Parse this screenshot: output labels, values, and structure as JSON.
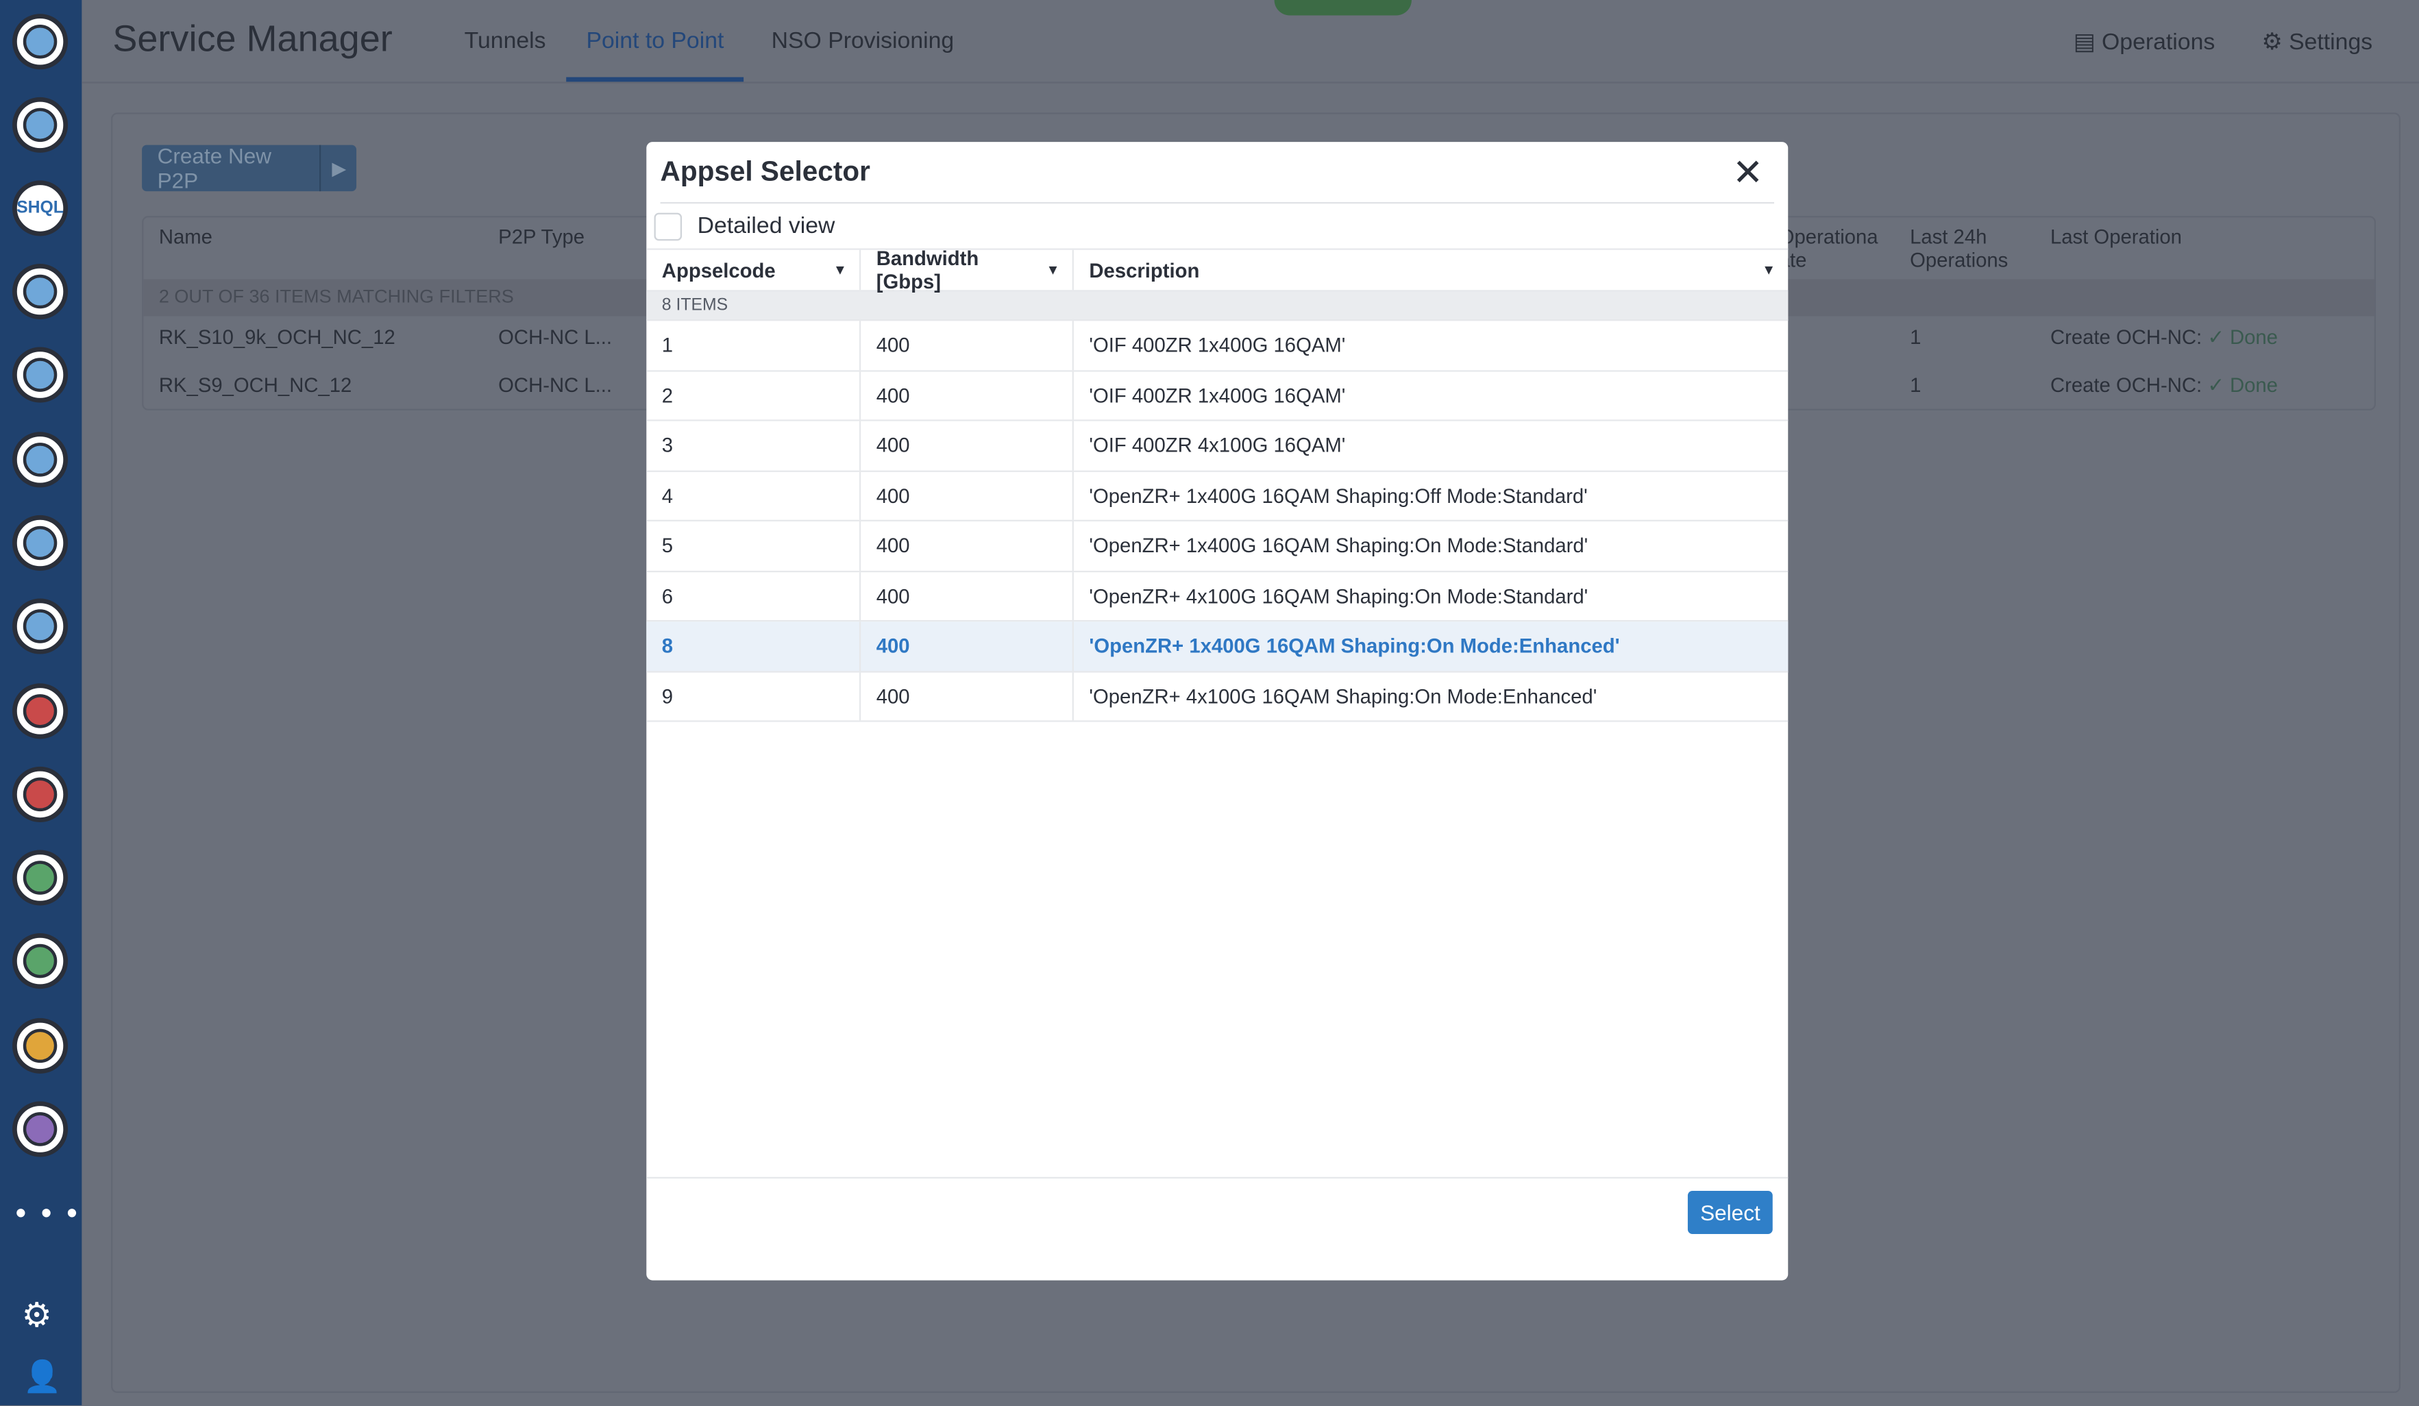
{
  "app": {
    "title": "Service Manager"
  },
  "nav": {
    "tabs": [
      {
        "label": "Tunnels"
      },
      {
        "label": "Point to Point",
        "active": true
      },
      {
        "label": "NSO Provisioning"
      }
    ],
    "operations": "Operations",
    "settings": "Settings"
  },
  "sidebar": {
    "icons": [
      "network-globe-icon",
      "dashboard-icon",
      "shql-icon",
      "scheduler-icon",
      "topology-icon",
      "map-icon",
      "layers-icon",
      "analytics-icon",
      "library-icon",
      "monitor-icon",
      "documents-icon",
      "triangle-icon",
      "integration-icon",
      "zoom-network-icon"
    ],
    "shql_text": "SHQL",
    "more": "• • •"
  },
  "page": {
    "create_button": "Create New P2P",
    "table": {
      "headers": [
        "Name",
        "P2P Type",
        "Operationa ate",
        "Last 24h Operations",
        "Last Operation"
      ],
      "filter_text": "2 OUT OF 36 ITEMS MATCHING FILTERS",
      "rows": [
        {
          "name": "RK_S10_9k_OCH_NC_12",
          "type": "OCH-NC L...",
          "ops": "1",
          "last_op": "Create OCH-NC:",
          "status": "✓ Done"
        },
        {
          "name": "RK_S9_OCH_NC_12",
          "type": "OCH-NC L...",
          "ops": "1",
          "last_op": "Create OCH-NC:",
          "status": "✓ Done"
        }
      ]
    }
  },
  "modal": {
    "title": "Appsel Selector",
    "detailed_view": "Detailed view",
    "detailed_checked": false,
    "columns": [
      "Appselcode",
      "Bandwidth [Gbps]",
      "Description"
    ],
    "count": "8 ITEMS",
    "rows": [
      {
        "code": "1",
        "bw": "400",
        "desc": "'OIF 400ZR 1x400G 16QAM'"
      },
      {
        "code": "2",
        "bw": "400",
        "desc": "'OIF 400ZR 1x400G 16QAM'"
      },
      {
        "code": "3",
        "bw": "400",
        "desc": "'OIF 400ZR 4x100G 16QAM'"
      },
      {
        "code": "4",
        "bw": "400",
        "desc": "'OpenZR+ 1x400G 16QAM Shaping:Off Mode:Standard'"
      },
      {
        "code": "5",
        "bw": "400",
        "desc": "'OpenZR+ 1x400G 16QAM Shaping:On Mode:Standard'"
      },
      {
        "code": "6",
        "bw": "400",
        "desc": "'OpenZR+ 4x100G 16QAM Shaping:On Mode:Standard'"
      },
      {
        "code": "8",
        "bw": "400",
        "desc": "'OpenZR+ 1x400G 16QAM Shaping:On Mode:Enhanced'",
        "selected": true
      },
      {
        "code": "9",
        "bw": "400",
        "desc": "'OpenZR+ 4x100G 16QAM Shaping:On Mode:Enhanced'"
      }
    ],
    "select_button": "Select"
  },
  "colors": {
    "accent": "#2f7fc8",
    "sidebar": "#1f416e",
    "selected_row": "#eaf1f9"
  }
}
